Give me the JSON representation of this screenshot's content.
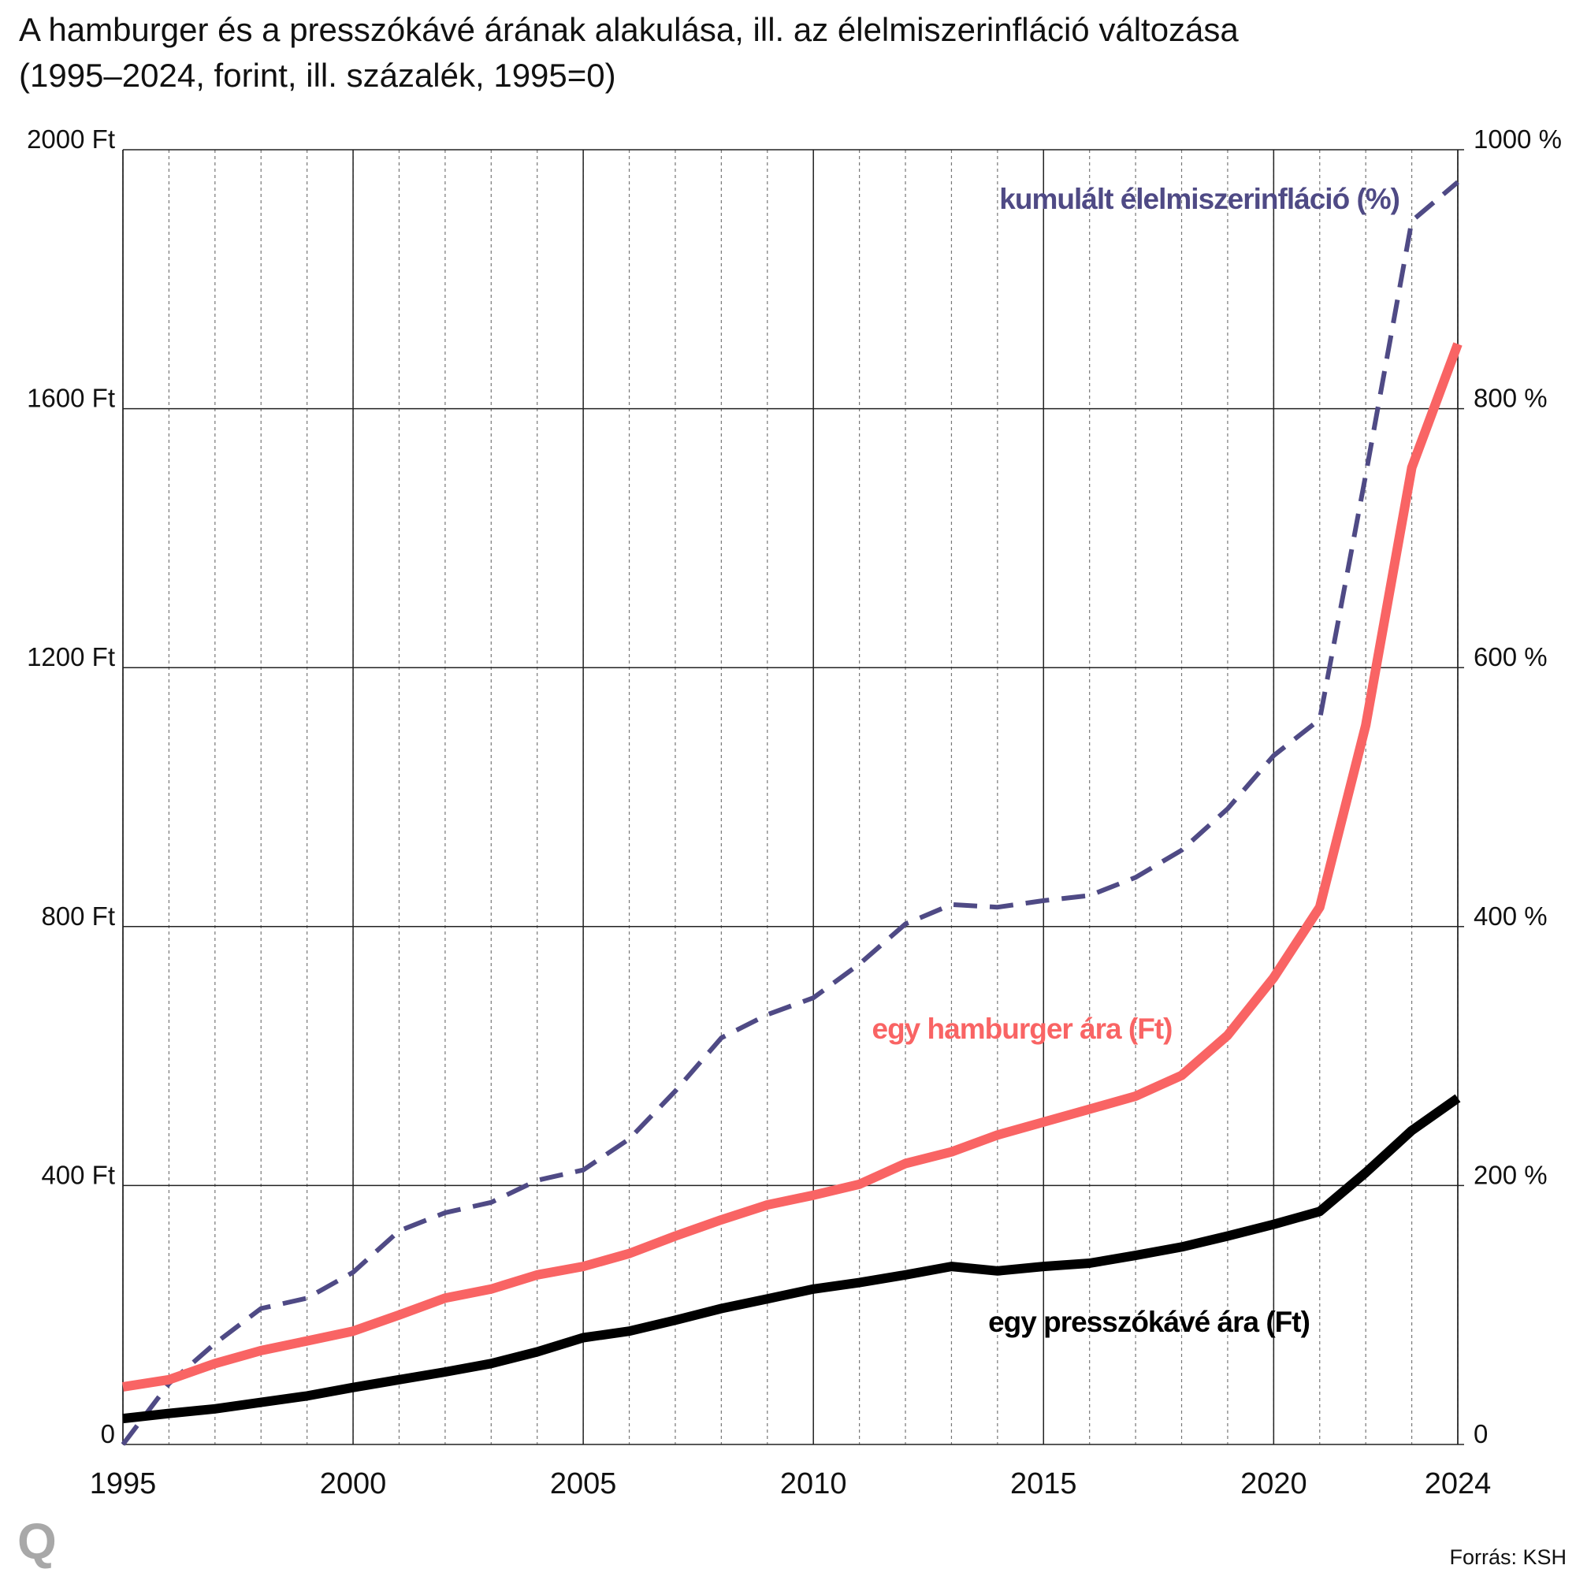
{
  "chart_data": {
    "type": "line",
    "title": "A hamburger és a presszókávé árának alakulása, ill. az élelmiszerinfláció változása",
    "subtitle": "(1995–2024, forint, ill. százalék, 1995=0)",
    "source": "Forrás: KSH",
    "logo": "Q",
    "x": [
      1995,
      1996,
      1997,
      1998,
      1999,
      2000,
      2001,
      2002,
      2003,
      2004,
      2005,
      2006,
      2007,
      2008,
      2009,
      2010,
      2011,
      2012,
      2013,
      2014,
      2015,
      2016,
      2017,
      2018,
      2019,
      2020,
      2021,
      2022,
      2023,
      2024
    ],
    "xlim": [
      1995,
      2024
    ],
    "xticks": [
      1995,
      2000,
      2005,
      2010,
      2015,
      2020,
      2024
    ],
    "ylim": [
      0,
      2000
    ],
    "yticks": [
      0,
      {
        "value": 400,
        "label": "400 Ft"
      },
      {
        "value": 800,
        "label": "800 Ft"
      },
      {
        "value": 1200,
        "label": "1200 Ft"
      },
      {
        "value": 1600,
        "label": "1600 Ft"
      },
      {
        "value": 2000,
        "label": "2000 Ft"
      }
    ],
    "y2lim": [
      0,
      1000
    ],
    "y2ticks": [
      0,
      {
        "value": 200,
        "label": "200 %"
      },
      {
        "value": 400,
        "label": "400 %"
      },
      {
        "value": 600,
        "label": "600 %"
      },
      {
        "value": 800,
        "label": "800 %"
      },
      {
        "value": 1000,
        "label": "1000 %"
      }
    ],
    "grid": true,
    "series": [
      {
        "name": "kumulált élelmiszerinfláció (%)",
        "color": "#4f4a85",
        "axis": "y2",
        "dashed": true,
        "values": [
          0,
          47,
          78,
          105,
          113,
          133,
          165,
          179,
          187,
          204,
          212,
          236,
          273,
          314,
          332,
          345,
          371,
          402,
          417,
          415,
          420,
          424,
          438,
          459,
          491,
          532,
          560,
          749,
          945,
          975
        ]
      },
      {
        "name": "egy hamburger ára (Ft)",
        "color": "#f96464",
        "values": [
          89,
          100,
          125,
          145,
          160,
          175,
          200,
          226,
          240,
          262,
          275,
          295,
          322,
          347,
          370,
          385,
          402,
          434,
          452,
          478,
          498,
          518,
          538,
          570,
          632,
          721,
          830,
          1111,
          1509,
          1700
        ]
      },
      {
        "name": "egy presszókávé ára (Ft)",
        "color": "#000000",
        "values": [
          40,
          48,
          55,
          65,
          75,
          88,
          100,
          112,
          125,
          143,
          165,
          175,
          192,
          210,
          225,
          240,
          250,
          262,
          275,
          268,
          275,
          280,
          292,
          305,
          322,
          340,
          360,
          420,
          485,
          535
        ]
      }
    ]
  }
}
